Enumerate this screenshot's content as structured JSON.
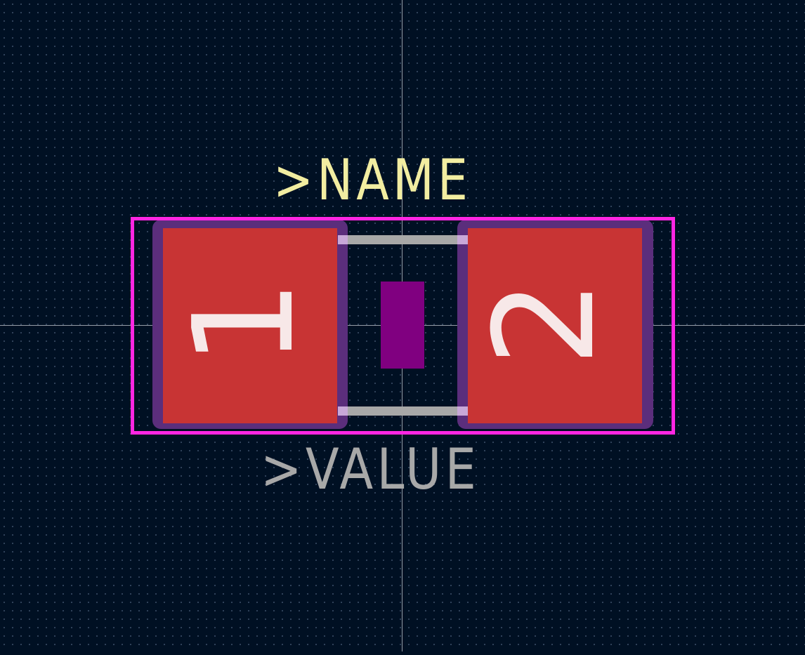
{
  "footprint": {
    "name_label": ">NAME",
    "value_label": ">VALUE",
    "pads": [
      {
        "number": "1"
      },
      {
        "number": "2"
      }
    ]
  },
  "colors": {
    "background": "#001023",
    "grid_dot": "#6e82a0",
    "crosshair": "#c8ccd4",
    "courtyard": "#ff26e2",
    "pad_copper": "#c83434",
    "pad_solder_mask": "#5b2e7c",
    "pad_number_text": "#f7e8e8",
    "fab_body": "#800080",
    "silkscreen_line": "#a8a8a8",
    "silkscreen_end": "#c8a8d8",
    "name_text": "#f2eda1",
    "value_text": "#a8a8a8"
  },
  "icons": {
    "crosshair": "cursor-crosshair-icon"
  }
}
